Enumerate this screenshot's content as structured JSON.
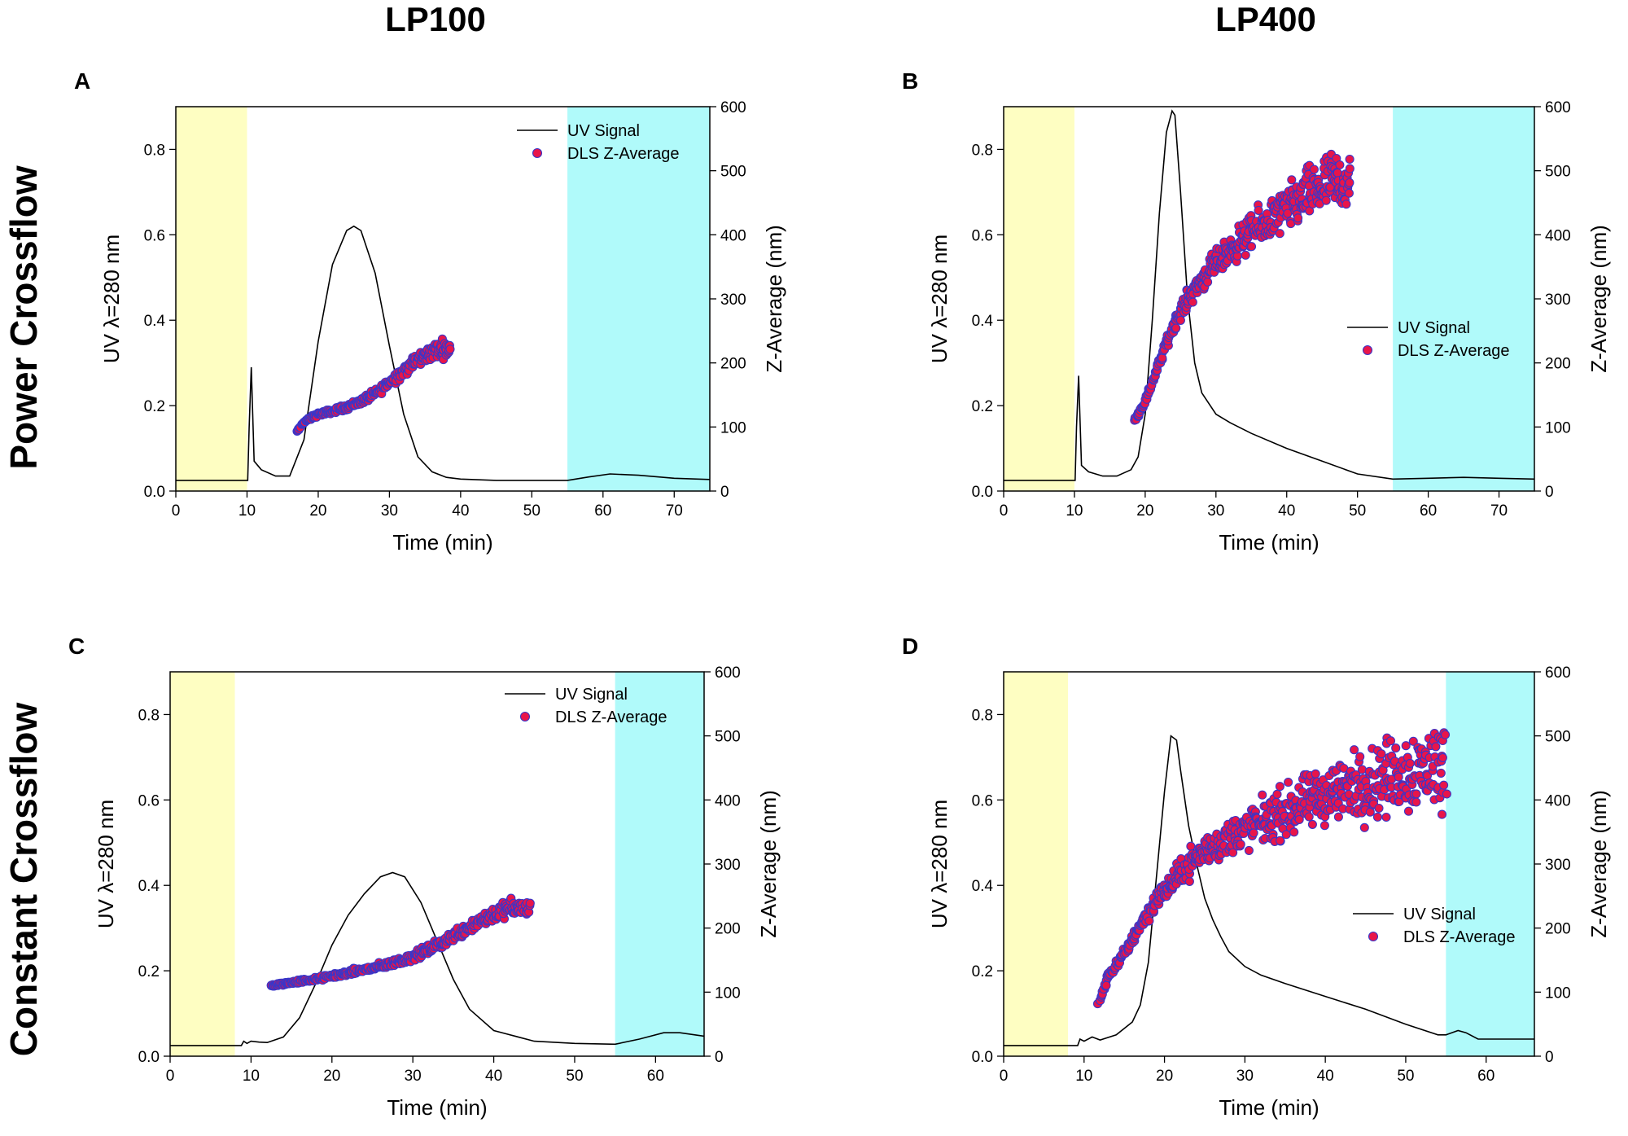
{
  "columns": [
    "LP100",
    "LP400"
  ],
  "rows": [
    "Power Crossflow",
    "Constant Crossflow"
  ],
  "colors": {
    "uv_line": "#000000",
    "dls_fill": "#e8154a",
    "dls_edge": "#3a36c8",
    "injection_band": "#fefec2",
    "elution_band": "#b0fafa"
  },
  "chart_data": [
    {
      "panel": "A",
      "type": "line+scatter",
      "xlabel": "Time (min)",
      "ylabel": "UV λ=280 nm",
      "y2label": "Z-Average (nm)",
      "xlim": [
        0,
        75
      ],
      "ylim": [
        0,
        0.9
      ],
      "y2lim": [
        0,
        600
      ],
      "xticks": [
        0,
        10,
        20,
        30,
        40,
        50,
        60,
        70
      ],
      "yticks": [
        0.0,
        0.2,
        0.4,
        0.6,
        0.8
      ],
      "y2ticks": [
        0,
        100,
        200,
        300,
        400,
        500,
        600
      ],
      "bands": [
        {
          "from": 0,
          "to": 10,
          "color": "yellow"
        },
        {
          "from": 55,
          "to": 75,
          "color": "cyan"
        }
      ],
      "legend": {
        "position": "top-right",
        "entries": [
          "UV Signal",
          "DLS Z-Average"
        ]
      },
      "series": [
        {
          "name": "UV Signal",
          "kind": "line",
          "x": [
            0,
            10.1,
            10.3,
            10.6,
            11.0,
            12,
            14,
            16,
            18,
            20,
            22,
            24,
            25,
            26,
            28,
            30,
            32,
            34,
            36,
            38,
            40,
            45,
            50,
            55,
            58,
            61,
            65,
            70,
            75
          ],
          "y": [
            0.025,
            0.025,
            0.15,
            0.29,
            0.07,
            0.05,
            0.035,
            0.035,
            0.12,
            0.35,
            0.53,
            0.61,
            0.62,
            0.61,
            0.51,
            0.34,
            0.18,
            0.08,
            0.045,
            0.032,
            0.028,
            0.025,
            0.025,
            0.025,
            0.033,
            0.04,
            0.037,
            0.03,
            0.027
          ]
        },
        {
          "name": "DLS Z-Average",
          "kind": "scatter",
          "trend": "rising",
          "noise": 0.05,
          "x": [
            17,
            18,
            20,
            22,
            24,
            26,
            28,
            30,
            32,
            34,
            36,
            38.5
          ],
          "y": [
            92,
            108,
            120,
            125,
            131,
            140,
            152,
            170,
            188,
            205,
            218,
            225
          ]
        }
      ]
    },
    {
      "panel": "B",
      "type": "line+scatter",
      "xlabel": "Time (min)",
      "ylabel": "UV λ=280 nm",
      "y2label": "Z-Average (nm)",
      "xlim": [
        0,
        75
      ],
      "ylim": [
        0,
        0.9
      ],
      "y2lim": [
        0,
        600
      ],
      "xticks": [
        0,
        10,
        20,
        30,
        40,
        50,
        60,
        70
      ],
      "yticks": [
        0.0,
        0.2,
        0.4,
        0.6,
        0.8
      ],
      "y2ticks": [
        0,
        100,
        200,
        300,
        400,
        500,
        600
      ],
      "bands": [
        {
          "from": 0,
          "to": 10,
          "color": "yellow"
        },
        {
          "from": 55,
          "to": 75,
          "color": "cyan"
        }
      ],
      "legend": {
        "position": "center-right",
        "entries": [
          "UV Signal",
          "DLS Z-Average"
        ]
      },
      "series": [
        {
          "name": "UV Signal",
          "kind": "line",
          "x": [
            0,
            10.1,
            10.3,
            10.6,
            11.0,
            12,
            14,
            16,
            18,
            19,
            20,
            21,
            22,
            23,
            23.8,
            24.2,
            25,
            26,
            27,
            28,
            30,
            32,
            35,
            40,
            45,
            50,
            55,
            60,
            65,
            70,
            75
          ],
          "y": [
            0.025,
            0.025,
            0.15,
            0.27,
            0.06,
            0.045,
            0.035,
            0.035,
            0.05,
            0.08,
            0.18,
            0.4,
            0.65,
            0.84,
            0.89,
            0.88,
            0.7,
            0.45,
            0.3,
            0.23,
            0.18,
            0.16,
            0.135,
            0.1,
            0.07,
            0.04,
            0.028,
            0.03,
            0.032,
            0.03,
            0.028
          ]
        },
        {
          "name": "DLS Z-Average",
          "kind": "scatter",
          "trend": "rising",
          "noise": 0.08,
          "x": [
            18.5,
            20,
            22,
            24,
            26,
            28,
            30,
            32,
            34,
            36,
            38,
            40,
            42,
            44,
            46,
            47.5,
            49
          ],
          "y": [
            110,
            140,
            200,
            260,
            300,
            330,
            355,
            375,
            395,
            410,
            425,
            440,
            455,
            470,
            480,
            485,
            470
          ]
        }
      ]
    },
    {
      "panel": "C",
      "type": "line+scatter",
      "xlabel": "Time (min)",
      "ylabel": "UV λ=280 nm",
      "y2label": "Z-Average (nm)",
      "xlim": [
        0,
        66
      ],
      "ylim": [
        0,
        0.9
      ],
      "y2lim": [
        0,
        600
      ],
      "xticks": [
        0,
        10,
        20,
        30,
        40,
        50,
        60
      ],
      "yticks": [
        0.0,
        0.2,
        0.4,
        0.6,
        0.8
      ],
      "y2ticks": [
        0,
        100,
        200,
        300,
        400,
        500,
        600
      ],
      "bands": [
        {
          "from": 0,
          "to": 8,
          "color": "yellow"
        },
        {
          "from": 55,
          "to": 66,
          "color": "cyan"
        }
      ],
      "legend": {
        "position": "top-right",
        "entries": [
          "UV Signal",
          "DLS Z-Average"
        ]
      },
      "series": [
        {
          "name": "UV Signal",
          "kind": "line",
          "x": [
            0,
            8.8,
            9.1,
            9.5,
            10,
            11,
            12,
            14,
            16,
            18,
            20,
            22,
            24,
            26,
            27.5,
            29,
            31,
            33,
            35,
            37,
            40,
            45,
            50,
            55,
            58,
            61,
            63,
            66
          ],
          "y": [
            0.025,
            0.025,
            0.035,
            0.03,
            0.035,
            0.033,
            0.032,
            0.045,
            0.09,
            0.17,
            0.26,
            0.33,
            0.38,
            0.42,
            0.43,
            0.42,
            0.36,
            0.27,
            0.18,
            0.11,
            0.06,
            0.035,
            0.03,
            0.028,
            0.04,
            0.055,
            0.055,
            0.047
          ]
        },
        {
          "name": "DLS Z-Average",
          "kind": "scatter",
          "trend": "rising",
          "noise": 0.05,
          "x": [
            12.5,
            14,
            16,
            18,
            20,
            22,
            24,
            26,
            28,
            30,
            32,
            34,
            36,
            38,
            40,
            42,
            44.5
          ],
          "y": [
            110,
            113,
            117,
            120,
            125,
            130,
            135,
            140,
            147,
            155,
            167,
            180,
            195,
            210,
            222,
            232,
            230
          ]
        }
      ]
    },
    {
      "panel": "D",
      "type": "line+scatter",
      "xlabel": "Time (min)",
      "ylabel": "UV λ=280 nm",
      "y2label": "Z-Average (nm)",
      "xlim": [
        0,
        66
      ],
      "ylim": [
        0,
        0.9
      ],
      "y2lim": [
        0,
        600
      ],
      "xticks": [
        0,
        10,
        20,
        30,
        40,
        50,
        60
      ],
      "yticks": [
        0.0,
        0.2,
        0.4,
        0.6,
        0.8
      ],
      "y2ticks": [
        0,
        100,
        200,
        300,
        400,
        500,
        600
      ],
      "bands": [
        {
          "from": 0,
          "to": 8,
          "color": "yellow"
        },
        {
          "from": 55,
          "to": 66,
          "color": "cyan"
        }
      ],
      "legend": {
        "position": "center-right",
        "entries": [
          "UV Signal",
          "DLS Z-Average"
        ]
      },
      "series": [
        {
          "name": "UV Signal",
          "kind": "line",
          "x": [
            0,
            9.2,
            9.5,
            10,
            11,
            12,
            14,
            16,
            17,
            18,
            19,
            20,
            20.8,
            21.5,
            22,
            23,
            24,
            25,
            26,
            27,
            28,
            30,
            32,
            35,
            40,
            45,
            50,
            54,
            55,
            56.5,
            57.5,
            59,
            62,
            66
          ],
          "y": [
            0.025,
            0.025,
            0.04,
            0.035,
            0.045,
            0.038,
            0.05,
            0.08,
            0.12,
            0.22,
            0.42,
            0.62,
            0.75,
            0.74,
            0.67,
            0.54,
            0.45,
            0.37,
            0.32,
            0.28,
            0.245,
            0.21,
            0.19,
            0.17,
            0.14,
            0.11,
            0.075,
            0.05,
            0.05,
            0.06,
            0.055,
            0.04,
            0.04,
            0.04
          ]
        },
        {
          "name": "DLS Z-Average",
          "kind": "scatter",
          "trend": "rising",
          "noise": 0.12,
          "x": [
            11.8,
            13,
            15,
            17,
            19,
            21,
            23,
            25,
            28,
            31,
            34,
            37,
            40,
            43,
            46,
            49,
            52,
            55
          ],
          "y": [
            80,
            125,
            160,
            205,
            245,
            270,
            300,
            320,
            340,
            360,
            375,
            390,
            410,
            420,
            430,
            440,
            450,
            455
          ]
        }
      ]
    }
  ]
}
